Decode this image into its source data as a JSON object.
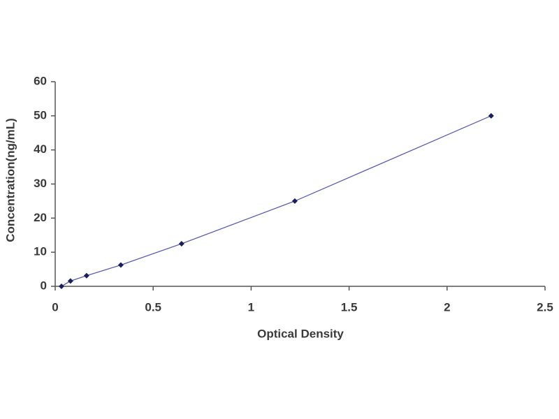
{
  "chart_data": {
    "type": "scatter",
    "x_label": "Optical Density",
    "y_label": "Concentration(ng/mL)",
    "x": [
      0.032,
      0.078,
      0.16,
      0.335,
      0.645,
      1.223,
      2.225
    ],
    "values": [
      0,
      1.56,
      3.12,
      6.25,
      12.5,
      25,
      50
    ],
    "color": "#1a1f5c",
    "line_color": "#5c5fb0",
    "line": true,
    "xlim": [
      0,
      2.5
    ],
    "xticks": [
      0,
      0.5,
      1,
      1.5,
      2,
      2.5
    ],
    "ylim": [
      0,
      60
    ],
    "yticks": [
      0,
      10,
      20,
      30,
      40,
      50,
      60
    ]
  }
}
